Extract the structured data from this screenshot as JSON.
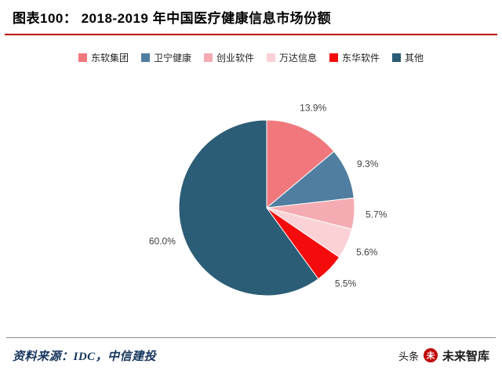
{
  "header": {
    "title": "图表100：  2018-2019 年中国医疗健康信息市场份额",
    "underline_color": "#C00000"
  },
  "chart_data": {
    "type": "pie",
    "title": "2018-2019 年中国医疗健康信息市场份额",
    "legend_position": "top",
    "start_angle_deg": 0,
    "direction": "clockwise",
    "label_format": "percent",
    "series": [
      {
        "name": "东软集团",
        "value": 13.9,
        "color": "#F0787D"
      },
      {
        "name": "卫宁健康",
        "value": 9.3,
        "color": "#4F7EA1"
      },
      {
        "name": "创业软件",
        "value": 5.7,
        "color": "#F4ACB2"
      },
      {
        "name": "万达信息",
        "value": 5.6,
        "color": "#FAD2D6"
      },
      {
        "name": "东华软件",
        "value": 5.5,
        "color": "#F40B0B"
      },
      {
        "name": "其他",
        "value": 60.0,
        "color": "#2B5D76"
      }
    ]
  },
  "footer": {
    "source": "资料来源：IDC，中信建投"
  },
  "watermark": {
    "prefix": "头条",
    "logo_glyph": "未",
    "brand": "未来智库"
  }
}
